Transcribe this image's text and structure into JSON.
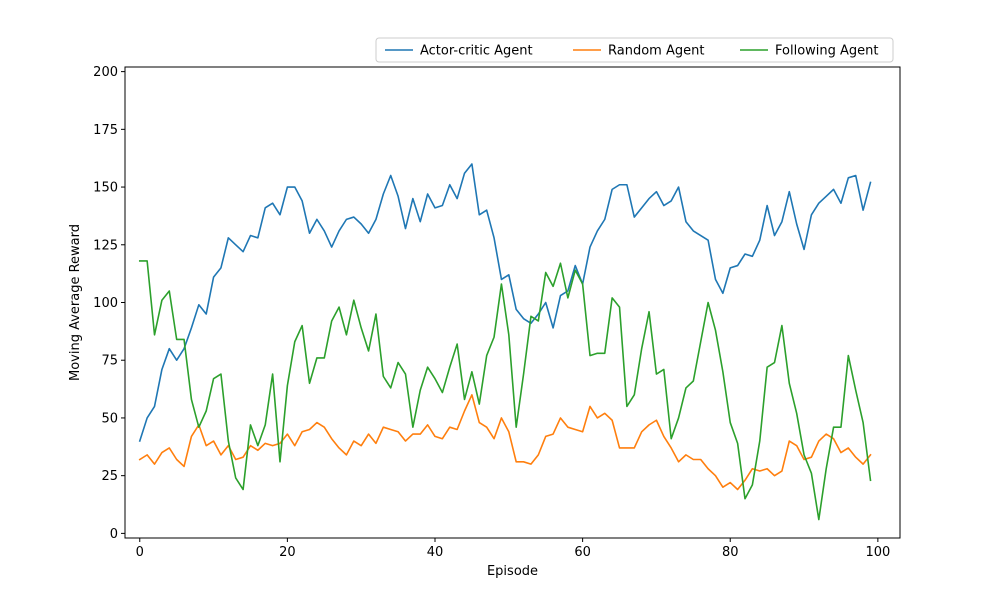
{
  "chart_data": {
    "type": "line",
    "title": "",
    "xlabel": "Episode",
    "ylabel": "Moving Average Reward",
    "xlim": [
      -2,
      103
    ],
    "ylim": [
      -2,
      202
    ],
    "xticks": [
      0,
      20,
      40,
      60,
      80,
      100
    ],
    "yticks": [
      0,
      25,
      50,
      75,
      100,
      125,
      150,
      175,
      200
    ],
    "grid": false,
    "legend_position": "top-right outside",
    "x": [
      0,
      1,
      2,
      3,
      4,
      5,
      6,
      7,
      8,
      9,
      10,
      11,
      12,
      13,
      14,
      15,
      16,
      17,
      18,
      19,
      20,
      21,
      22,
      23,
      24,
      25,
      26,
      27,
      28,
      29,
      30,
      31,
      32,
      33,
      34,
      35,
      36,
      37,
      38,
      39,
      40,
      41,
      42,
      43,
      44,
      45,
      46,
      47,
      48,
      49,
      50,
      51,
      52,
      53,
      54,
      55,
      56,
      57,
      58,
      59,
      60,
      61,
      62,
      63,
      64,
      65,
      66,
      67,
      68,
      69,
      70,
      71,
      72,
      73,
      74,
      75,
      76,
      77,
      78,
      79,
      80,
      81,
      82,
      83,
      84,
      85,
      86,
      87,
      88,
      89,
      90,
      91,
      92,
      93,
      94,
      95,
      96,
      97,
      98,
      99
    ],
    "series": [
      {
        "name": "Actor-critic Agent",
        "color": "#1f77b4",
        "values": [
          40,
          50,
          55,
          71,
          80,
          75,
          80,
          89,
          99,
          95,
          111,
          115,
          128,
          125,
          122,
          129,
          128,
          141,
          143,
          138,
          150,
          150,
          144,
          130,
          136,
          131,
          124,
          131,
          136,
          137,
          134,
          130,
          136,
          147,
          155,
          146,
          132,
          145,
          135,
          147,
          141,
          142,
          151,
          145,
          156,
          160,
          138,
          140,
          128,
          110,
          112,
          97,
          93,
          91,
          95,
          100,
          89,
          103,
          105,
          116,
          108,
          124,
          131,
          136,
          149,
          151,
          151,
          137,
          141,
          145,
          148,
          142,
          144,
          150,
          135,
          131,
          129,
          127,
          110,
          104,
          115,
          116,
          121,
          120,
          127,
          142,
          129,
          135,
          148,
          134,
          123,
          138,
          143,
          146,
          149,
          143,
          154,
          155,
          140,
          152
        ]
      },
      {
        "name": "Random Agent",
        "color": "#ff7f0e",
        "values": [
          32,
          34,
          30,
          35,
          37,
          32,
          29,
          42,
          47,
          38,
          40,
          34,
          38,
          32,
          33,
          38,
          36,
          39,
          38,
          39,
          43,
          38,
          44,
          45,
          48,
          46,
          41,
          37,
          34,
          40,
          38,
          43,
          39,
          46,
          45,
          44,
          40,
          43,
          43,
          47,
          42,
          41,
          46,
          45,
          53,
          60,
          48,
          46,
          41,
          50,
          44,
          31,
          31,
          30,
          34,
          42,
          43,
          50,
          46,
          45,
          44,
          55,
          50,
          52,
          49,
          37,
          37,
          37,
          44,
          47,
          49,
          42,
          37,
          31,
          34,
          32,
          32,
          28,
          25,
          20,
          22,
          19,
          23,
          28,
          27,
          28,
          25,
          27,
          40,
          38,
          32,
          33,
          40,
          43,
          41,
          35,
          37,
          33,
          30,
          34
        ]
      },
      {
        "name": "Following Agent",
        "color": "#2ca02c",
        "values": [
          118,
          118,
          86,
          101,
          105,
          84,
          84,
          58,
          46,
          53,
          67,
          69,
          40,
          24,
          19,
          47,
          38,
          47,
          69,
          31,
          64,
          83,
          90,
          65,
          76,
          76,
          92,
          98,
          86,
          101,
          89,
          79,
          95,
          68,
          63,
          74,
          69,
          46,
          62,
          72,
          67,
          61,
          72,
          82,
          58,
          70,
          56,
          77,
          85,
          108,
          86,
          46,
          69,
          94,
          92,
          113,
          107,
          117,
          102,
          114,
          108,
          77,
          78,
          78,
          102,
          98,
          55,
          60,
          80,
          96,
          69,
          71,
          41,
          50,
          63,
          66,
          83,
          100,
          88,
          70,
          48,
          39,
          15,
          21,
          40,
          72,
          74,
          90,
          65,
          52,
          34,
          26,
          6,
          28,
          46,
          46,
          77,
          62,
          48,
          23
        ]
      }
    ]
  }
}
